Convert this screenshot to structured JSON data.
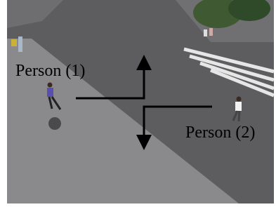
{
  "annotations": [
    {
      "label": "Person (1)"
    },
    {
      "label": "Person (2)"
    }
  ]
}
